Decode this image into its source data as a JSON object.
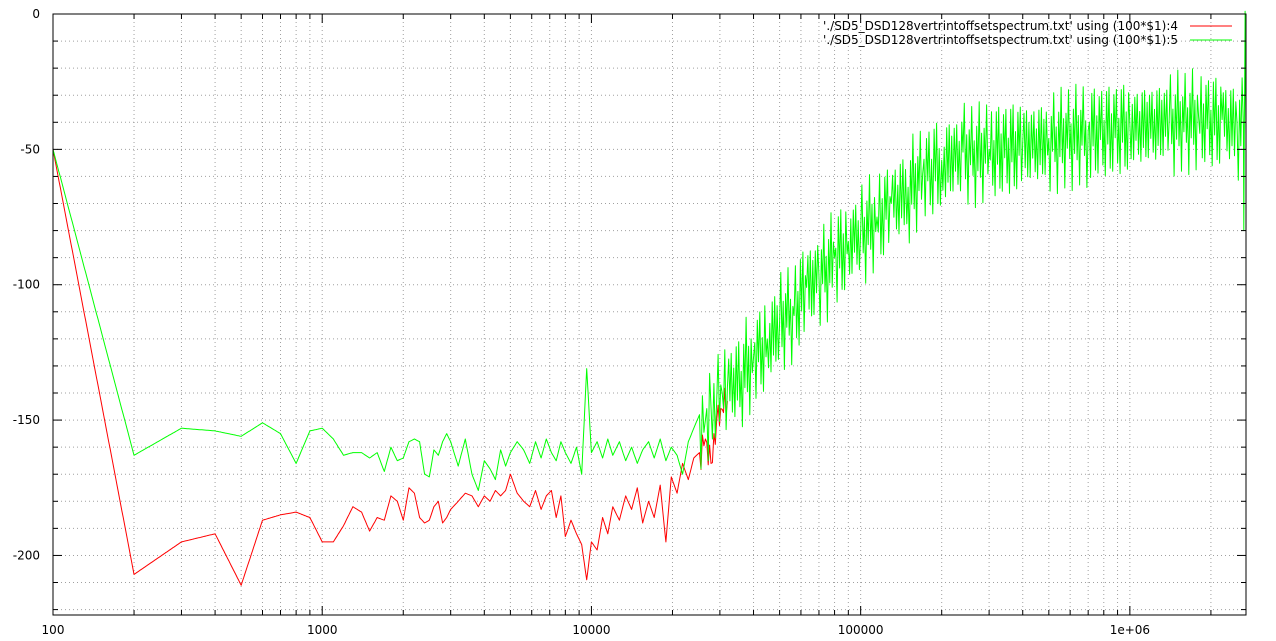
{
  "chart_data": {
    "type": "line",
    "xscale": "log",
    "xlim": [
      100,
      2700000
    ],
    "ylim": [
      -222,
      0
    ],
    "x_ticks": [
      {
        "value": 100,
        "label": "100"
      },
      {
        "value": 1000,
        "label": "1000"
      },
      {
        "value": 10000,
        "label": "10000"
      },
      {
        "value": 100000,
        "label": "100000"
      },
      {
        "value": 1000000,
        "label": "1e+06"
      }
    ],
    "y_ticks": [
      {
        "value": 0,
        "label": "0"
      },
      {
        "value": -50,
        "label": "-50"
      },
      {
        "value": -100,
        "label": "-100"
      },
      {
        "value": -150,
        "label": "-150"
      },
      {
        "value": -200,
        "label": "-200"
      }
    ],
    "y_minor_step": 10,
    "grid": true,
    "legend_position": "top-right",
    "series": [
      {
        "name": "'./SD5_DSD128vertrintoffsetspectrum.txt' using (100*$1):4",
        "color": "#ff0000",
        "points": [
          [
            100,
            -50
          ],
          [
            200,
            -207
          ],
          [
            300,
            -195
          ],
          [
            400,
            -192
          ],
          [
            500,
            -211
          ],
          [
            600,
            -187
          ],
          [
            700,
            -185
          ],
          [
            800,
            -184
          ],
          [
            900,
            -186
          ],
          [
            1000,
            -195
          ],
          [
            1100,
            -195
          ],
          [
            1200,
            -189
          ],
          [
            1300,
            -182
          ],
          [
            1400,
            -184
          ],
          [
            1500,
            -191
          ],
          [
            1600,
            -186
          ],
          [
            1700,
            -187
          ],
          [
            1800,
            -178
          ],
          [
            1900,
            -180
          ],
          [
            2000,
            -187
          ],
          [
            2100,
            -175
          ],
          [
            2200,
            -177
          ],
          [
            2300,
            -186
          ],
          [
            2400,
            -188
          ],
          [
            2500,
            -187
          ],
          [
            2600,
            -182
          ],
          [
            2700,
            -180
          ],
          [
            2800,
            -188
          ],
          [
            2900,
            -186
          ],
          [
            3000,
            -183
          ],
          [
            3200,
            -180
          ],
          [
            3400,
            -177
          ],
          [
            3600,
            -178
          ],
          [
            3800,
            -182
          ],
          [
            4000,
            -178
          ],
          [
            4200,
            -180
          ],
          [
            4400,
            -176
          ],
          [
            4600,
            -178
          ],
          [
            4800,
            -176
          ],
          [
            5000,
            -170
          ],
          [
            5300,
            -177
          ],
          [
            5600,
            -180
          ],
          [
            5900,
            -182
          ],
          [
            6200,
            -176
          ],
          [
            6500,
            -183
          ],
          [
            6800,
            -178
          ],
          [
            7100,
            -176
          ],
          [
            7400,
            -186
          ],
          [
            7700,
            -178
          ],
          [
            8000,
            -193
          ],
          [
            8400,
            -187
          ],
          [
            8800,
            -192
          ],
          [
            9200,
            -196
          ],
          [
            9600,
            -209
          ],
          [
            10000,
            -195
          ],
          [
            10500,
            -198
          ],
          [
            11000,
            -186
          ],
          [
            11500,
            -192
          ],
          [
            12000,
            -182
          ],
          [
            12700,
            -187
          ],
          [
            13400,
            -178
          ],
          [
            14100,
            -183
          ],
          [
            14800,
            -175
          ],
          [
            15500,
            -188
          ],
          [
            16300,
            -180
          ],
          [
            17100,
            -186
          ],
          [
            18000,
            -174
          ],
          [
            18900,
            -195
          ],
          [
            19800,
            -171
          ],
          [
            20800,
            -177
          ],
          [
            21800,
            -166
          ],
          [
            22900,
            -172
          ],
          [
            24000,
            -164
          ],
          [
            25200,
            -162
          ],
          [
            26500,
            -157
          ],
          [
            27800,
            -166
          ],
          [
            29200,
            -150
          ],
          [
            30600,
            -146
          ],
          [
            32000,
            -143
          ]
        ],
        "noise": [
          -4,
          3,
          -2,
          5,
          -3,
          2,
          -5,
          4,
          -1,
          3,
          -4,
          1
        ]
      },
      {
        "name": "'./SD5_DSD128vertrintoffsetspectrum.txt' using (100*$1):5",
        "color": "#00ff00",
        "points": [
          [
            100,
            -50
          ],
          [
            200,
            -163
          ],
          [
            300,
            -153
          ],
          [
            400,
            -154
          ],
          [
            500,
            -156
          ],
          [
            600,
            -151
          ],
          [
            700,
            -155
          ],
          [
            800,
            -166
          ],
          [
            900,
            -154
          ],
          [
            1000,
            -153
          ],
          [
            1100,
            -157
          ],
          [
            1200,
            -163
          ],
          [
            1300,
            -162
          ],
          [
            1400,
            -162
          ],
          [
            1500,
            -164
          ],
          [
            1600,
            -162
          ],
          [
            1700,
            -169
          ],
          [
            1800,
            -160
          ],
          [
            1900,
            -165
          ],
          [
            2000,
            -164
          ],
          [
            2100,
            -158
          ],
          [
            2200,
            -157
          ],
          [
            2300,
            -158
          ],
          [
            2400,
            -170
          ],
          [
            2500,
            -171
          ],
          [
            2600,
            -161
          ],
          [
            2700,
            -163
          ],
          [
            2800,
            -158
          ],
          [
            2900,
            -155
          ],
          [
            3000,
            -158
          ],
          [
            3200,
            -167
          ],
          [
            3400,
            -157
          ],
          [
            3600,
            -170
          ],
          [
            3800,
            -176
          ],
          [
            4000,
            -165
          ],
          [
            4200,
            -168
          ],
          [
            4400,
            -172
          ],
          [
            4600,
            -161
          ],
          [
            4800,
            -167
          ],
          [
            5000,
            -162
          ],
          [
            5300,
            -158
          ],
          [
            5600,
            -161
          ],
          [
            5900,
            -166
          ],
          [
            6200,
            -158
          ],
          [
            6500,
            -164
          ],
          [
            6800,
            -157
          ],
          [
            7100,
            -162
          ],
          [
            7400,
            -165
          ],
          [
            7700,
            -158
          ],
          [
            8000,
            -162
          ],
          [
            8400,
            -166
          ],
          [
            8800,
            -160
          ],
          [
            9200,
            -170
          ],
          [
            9600,
            -131
          ],
          [
            10000,
            -162
          ],
          [
            10500,
            -158
          ],
          [
            11000,
            -164
          ],
          [
            11500,
            -157
          ],
          [
            12000,
            -163
          ],
          [
            12700,
            -158
          ],
          [
            13400,
            -165
          ],
          [
            14100,
            -160
          ],
          [
            14800,
            -166
          ],
          [
            15500,
            -161
          ],
          [
            16300,
            -158
          ],
          [
            17100,
            -164
          ],
          [
            18000,
            -157
          ],
          [
            18900,
            -165
          ],
          [
            19800,
            -160
          ],
          [
            20800,
            -163
          ],
          [
            21800,
            -170
          ],
          [
            22900,
            -158
          ],
          [
            24000,
            -153
          ],
          [
            25200,
            -148
          ],
          [
            26500,
            -150
          ],
          [
            27800,
            -145
          ],
          [
            29200,
            -143
          ],
          [
            30600,
            -140
          ],
          [
            32000,
            -138
          ],
          [
            36000,
            -132
          ],
          [
            40000,
            -127
          ],
          [
            45000,
            -120
          ],
          [
            50000,
            -114
          ],
          [
            56000,
            -108
          ],
          [
            63000,
            -101
          ],
          [
            70000,
            -96
          ],
          [
            80000,
            -90
          ],
          [
            90000,
            -84
          ],
          [
            100000,
            -80
          ],
          [
            115000,
            -75
          ],
          [
            130000,
            -70
          ],
          [
            150000,
            -64
          ],
          [
            170000,
            -59
          ],
          [
            200000,
            -54
          ],
          [
            240000,
            -51
          ],
          [
            300000,
            -50
          ],
          [
            400000,
            -48
          ],
          [
            500000,
            -46
          ],
          [
            700000,
            -43
          ],
          [
            1000000,
            -41
          ],
          [
            1400000,
            -39
          ],
          [
            1800000,
            -38
          ],
          [
            2200000,
            -39
          ],
          [
            2500000,
            -40
          ],
          [
            2640000,
            -42
          ],
          [
            2650000,
            -80
          ],
          [
            2660000,
            -45
          ],
          [
            2680000,
            1
          ],
          [
            2690000,
            -30
          ],
          [
            2700000,
            -45
          ]
        ],
        "noise": [
          -14,
          9,
          -6,
          12,
          -10,
          5,
          -13,
          8,
          -4,
          11,
          -9,
          3
        ]
      }
    ]
  }
}
